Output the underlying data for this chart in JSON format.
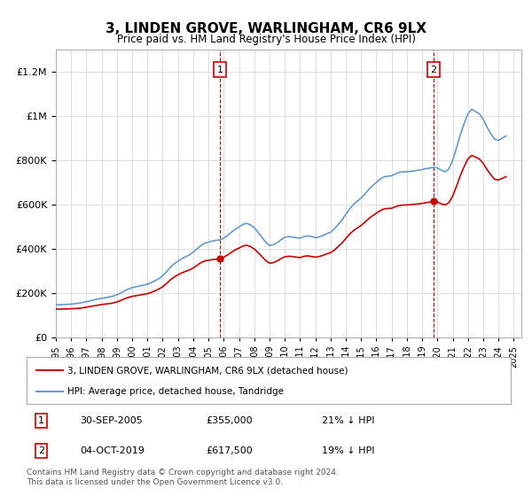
{
  "title": "3, LINDEN GROVE, WARLINGHAM, CR6 9LX",
  "subtitle": "Price paid vs. HM Land Registry's House Price Index (HPI)",
  "ylabel_ticks": [
    "£0",
    "£200K",
    "£400K",
    "£600K",
    "£800K",
    "£1M",
    "£1.2M"
  ],
  "ytick_values": [
    0,
    200000,
    400000,
    600000,
    800000,
    1000000,
    1200000
  ],
  "ylim": [
    0,
    1300000
  ],
  "xlim_start": 1995.0,
  "xlim_end": 2025.5,
  "sale1_x": 2005.75,
  "sale1_y": 355000,
  "sale1_label": "1",
  "sale1_date": "30-SEP-2005",
  "sale1_price": "£355,000",
  "sale1_hpi": "21% ↓ HPI",
  "sale2_x": 2019.75,
  "sale2_y": 617500,
  "sale2_label": "2",
  "sale2_date": "04-OCT-2019",
  "sale2_price": "£617,500",
  "sale2_hpi": "19% ↓ HPI",
  "line1_color": "#cc0000",
  "line2_color": "#6699cc",
  "vline_color": "#cc0000",
  "legend1_label": "3, LINDEN GROVE, WARLINGHAM, CR6 9LX (detached house)",
  "legend2_label": "HPI: Average price, detached house, Tandridge",
  "footer": "Contains HM Land Registry data © Crown copyright and database right 2024.\nThis data is licensed under the Open Government Licence v3.0.",
  "background_color": "#ffffff",
  "plot_bg_color": "#ffffff",
  "grid_color": "#dddddd",
  "hpi_data": {
    "years": [
      1995.0,
      1995.25,
      1995.5,
      1995.75,
      1996.0,
      1996.25,
      1996.5,
      1996.75,
      1997.0,
      1997.25,
      1997.5,
      1997.75,
      1998.0,
      1998.25,
      1998.5,
      1998.75,
      1999.0,
      1999.25,
      1999.5,
      1999.75,
      2000.0,
      2000.25,
      2000.5,
      2000.75,
      2001.0,
      2001.25,
      2001.5,
      2001.75,
      2002.0,
      2002.25,
      2002.5,
      2002.75,
      2003.0,
      2003.25,
      2003.5,
      2003.75,
      2004.0,
      2004.25,
      2004.5,
      2004.75,
      2005.0,
      2005.25,
      2005.5,
      2005.75,
      2006.0,
      2006.25,
      2006.5,
      2006.75,
      2007.0,
      2007.25,
      2007.5,
      2007.75,
      2008.0,
      2008.25,
      2008.5,
      2008.75,
      2009.0,
      2009.25,
      2009.5,
      2009.75,
      2010.0,
      2010.25,
      2010.5,
      2010.75,
      2011.0,
      2011.25,
      2011.5,
      2011.75,
      2012.0,
      2012.25,
      2012.5,
      2012.75,
      2013.0,
      2013.25,
      2013.5,
      2013.75,
      2014.0,
      2014.25,
      2014.5,
      2014.75,
      2015.0,
      2015.25,
      2015.5,
      2015.75,
      2016.0,
      2016.25,
      2016.5,
      2016.75,
      2017.0,
      2017.25,
      2017.5,
      2017.75,
      2018.0,
      2018.25,
      2018.5,
      2018.75,
      2019.0,
      2019.25,
      2019.5,
      2019.75,
      2020.0,
      2020.25,
      2020.5,
      2020.75,
      2021.0,
      2021.25,
      2021.5,
      2021.75,
      2022.0,
      2022.25,
      2022.5,
      2022.75,
      2023.0,
      2023.25,
      2023.5,
      2023.75,
      2024.0,
      2024.25,
      2024.5
    ],
    "hpi_values": [
      148000,
      147000,
      148000,
      149000,
      150000,
      152000,
      154000,
      157000,
      161000,
      165000,
      169000,
      173000,
      176000,
      179000,
      182000,
      186000,
      192000,
      200000,
      210000,
      218000,
      224000,
      228000,
      232000,
      236000,
      240000,
      247000,
      256000,
      265000,
      278000,
      296000,
      316000,
      332000,
      344000,
      355000,
      364000,
      372000,
      385000,
      400000,
      415000,
      425000,
      430000,
      435000,
      438000,
      440000,
      448000,
      460000,
      475000,
      488000,
      498000,
      510000,
      515000,
      508000,
      495000,
      475000,
      452000,
      430000,
      415000,
      418000,
      428000,
      440000,
      452000,
      455000,
      453000,
      450000,
      448000,
      455000,
      458000,
      455000,
      450000,
      454000,
      460000,
      468000,
      475000,
      490000,
      510000,
      530000,
      555000,
      580000,
      600000,
      615000,
      630000,
      648000,
      668000,
      685000,
      700000,
      715000,
      725000,
      728000,
      730000,
      738000,
      745000,
      748000,
      748000,
      750000,
      752000,
      755000,
      758000,
      762000,
      765000,
      768000,
      765000,
      755000,
      748000,
      760000,
      800000,
      855000,
      915000,
      965000,
      1010000,
      1030000,
      1020000,
      1010000,
      985000,
      950000,
      920000,
      895000,
      890000,
      900000,
      910000
    ],
    "price_values": [
      128000,
      127000,
      127500,
      128000,
      129000,
      130000,
      131000,
      133000,
      136000,
      139000,
      142000,
      145000,
      148000,
      150000,
      152000,
      155000,
      160000,
      166000,
      174000,
      180000,
      185000,
      188000,
      191000,
      194000,
      197000,
      203000,
      210000,
      218000,
      228000,
      243000,
      259000,
      272000,
      282000,
      291000,
      298000,
      304000,
      313000,
      325000,
      337000,
      345000,
      348000,
      351000,
      353000,
      355000,
      362000,
      372000,
      384000,
      395000,
      403000,
      412000,
      416000,
      410000,
      399000,
      383000,
      365000,
      347000,
      335000,
      337000,
      345000,
      355000,
      364000,
      366000,
      365000,
      362000,
      360000,
      366000,
      368000,
      365000,
      362000,
      365000,
      370000,
      377000,
      382000,
      394000,
      410000,
      426000,
      446000,
      466000,
      482000,
      494000,
      505000,
      520000,
      536000,
      549000,
      561000,
      572000,
      580000,
      582000,
      583000,
      590000,
      595000,
      598000,
      598000,
      599000,
      601000,
      603000,
      605000,
      608000,
      611000,
      614000,
      611000,
      603000,
      598000,
      608000,
      638000,
      682000,
      730000,
      771000,
      806000,
      822000,
      814000,
      806000,
      786000,
      758000,
      734000,
      714000,
      711000,
      718000,
      726000
    ]
  }
}
